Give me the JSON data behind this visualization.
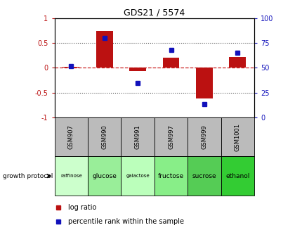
{
  "title": "GDS21 / 5574",
  "samples": [
    "GSM907",
    "GSM990",
    "GSM991",
    "GSM997",
    "GSM999",
    "GSM1001"
  ],
  "conditions": [
    "raffinose",
    "glucose",
    "galactose",
    "fructose",
    "sucrose",
    "ethanol"
  ],
  "log_ratio": [
    0.02,
    0.75,
    -0.07,
    0.2,
    -0.62,
    0.22
  ],
  "percentile_rank": [
    52,
    80,
    35,
    68,
    13,
    65
  ],
  "bar_color": "#bb1111",
  "dot_color": "#1111bb",
  "ylim_left": [
    -1,
    1
  ],
  "ylim_right": [
    0,
    100
  ],
  "yticks_left": [
    -1,
    -0.5,
    0,
    0.5,
    1
  ],
  "yticks_right": [
    0,
    25,
    50,
    75,
    100
  ],
  "hline_color": "#cc2222",
  "dotted_color": "#555555",
  "bg_color": "#ffffff",
  "plot_bg": "#ffffff",
  "gsm_bg": "#bbbbbb",
  "cond_colors": [
    "#ccffcc",
    "#99ee99",
    "#bbffbb",
    "#88ee88",
    "#55cc55",
    "#33cc33"
  ],
  "growth_protocol_label": "growth protocol",
  "legend_log_ratio": "log ratio",
  "legend_percentile": "percentile rank within the sample",
  "bar_width": 0.5
}
